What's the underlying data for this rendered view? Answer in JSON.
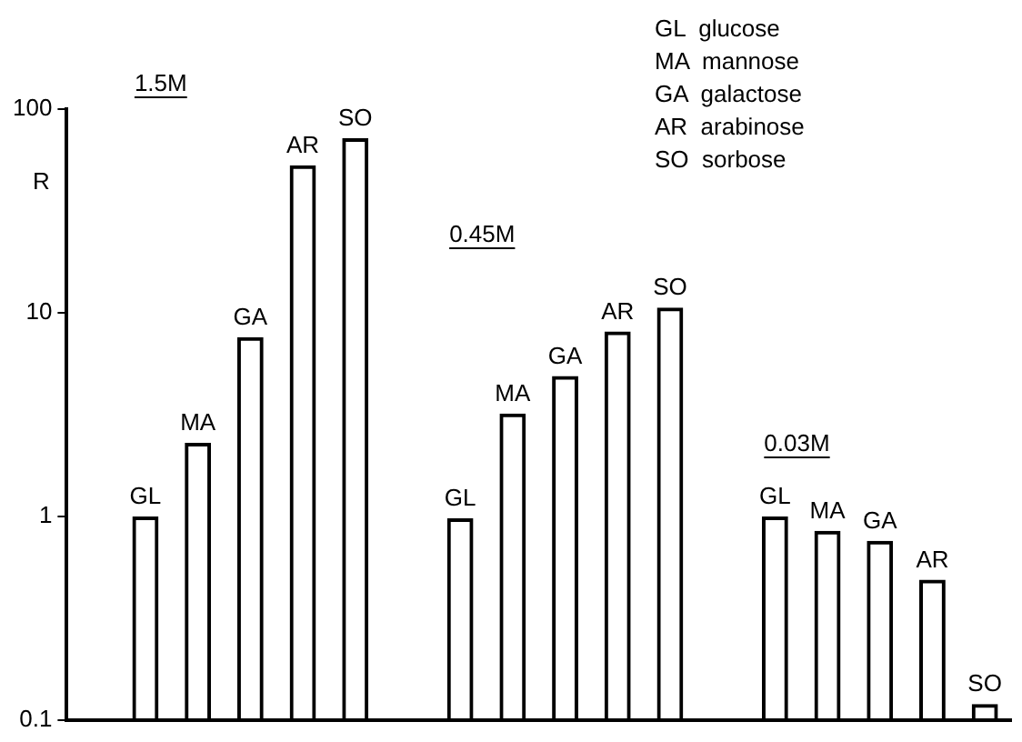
{
  "chart_data": {
    "type": "bar",
    "ylabel": "R",
    "categories": [
      null,
      null,
      null,
      null,
      null,
      null,
      null,
      null,
      null,
      null,
      null,
      null,
      null,
      null,
      null,
      null,
      null,
      null
    ],
    "values": [
      null,
      1.0,
      2.3,
      7.6,
      53,
      72,
      null,
      0.98,
      3.2,
      4.9,
      8.1,
      10.6,
      null,
      1.0,
      0.85,
      0.76,
      0.49,
      0.12
    ],
    "value_labels": [
      null,
      "GL",
      "MA",
      "GA",
      "AR",
      "SO",
      null,
      "GL",
      "MA",
      "GA",
      "AR",
      "SO",
      null,
      "GL",
      "MA",
      "GA",
      "AR",
      "SO"
    ],
    "color": "#000000",
    "log": "y",
    "ylim": [
      0.1,
      100
    ],
    "yticks": [
      0.1,
      1,
      10,
      100
    ],
    "grid": false,
    "legend": false,
    "tick_labels": "y",
    "annotations": [
      "1.5M",
      "0.45M",
      "0.03M",
      "GL  glucose",
      "MA  mannose",
      "GA  galactose",
      "AR  arabinose",
      "SO  sorbose"
    ]
  }
}
